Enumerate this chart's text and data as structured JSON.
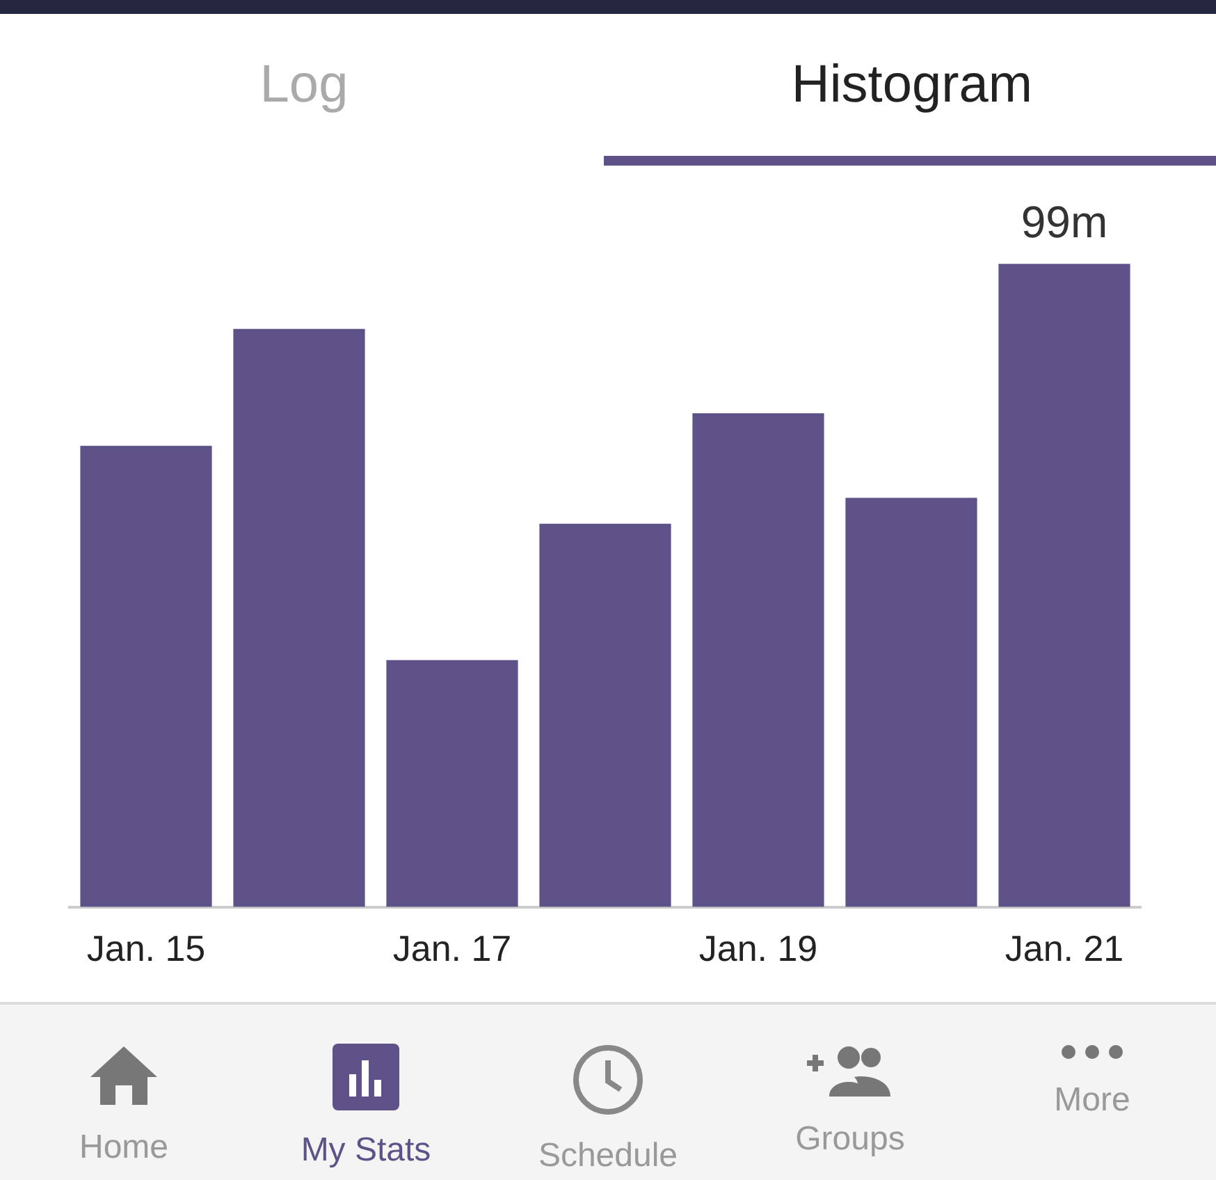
{
  "chart_data": {
    "type": "bar",
    "categories": [
      "Jan. 15",
      null,
      "Jan. 17",
      null,
      "Jan. 19",
      null,
      "Jan. 21"
    ],
    "values": [
      71,
      89,
      38,
      59,
      76,
      63,
      99
    ],
    "value_labels": [
      null,
      null,
      null,
      null,
      null,
      null,
      "99m"
    ],
    "color": "#5e5289",
    "grid": false,
    "legend": false,
    "tick_labels": "x",
    "annotations": [
      "Log",
      "Histogram",
      "Home",
      "My Stats",
      "Schedule",
      "Groups",
      "More"
    ]
  }
}
